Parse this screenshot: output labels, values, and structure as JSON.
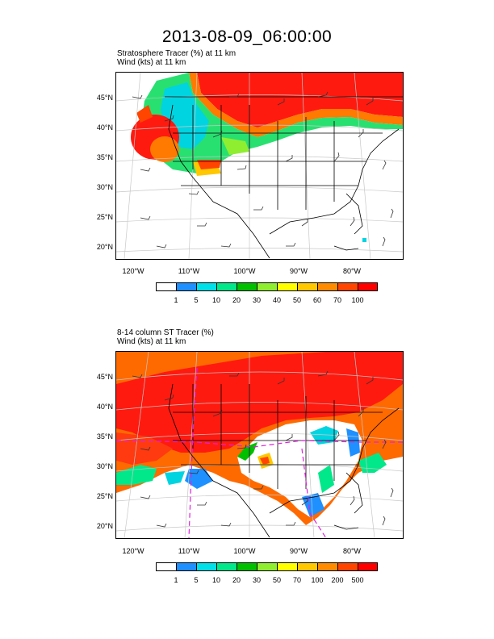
{
  "title": "2013-08-09_06:00:00",
  "panels": [
    {
      "label_line1": "Stratosphere Tracer   (%)    at   11 km",
      "label_line2": "Wind   (kts)     at   11 km",
      "lat_labels": [
        "45°N",
        "40°N",
        "35°N",
        "30°N",
        "25°N",
        "20°N"
      ],
      "lon_labels": [
        "120°W",
        "110°W",
        "100°W",
        "90°W",
        "80°W"
      ],
      "colorbar_labels": [
        "1",
        "5",
        "10",
        "20",
        "30",
        "40",
        "50",
        "60",
        "70",
        "100"
      ],
      "colorbar_colors": [
        "#ffffff",
        "#1e90ff",
        "#00e0e8",
        "#00e88a",
        "#00c000",
        "#90ee30",
        "#ffff00",
        "#ffc800",
        "#ff8c00",
        "#ff4500",
        "#ff0000"
      ]
    },
    {
      "label_line1": "8-14 column ST Tracer   (%)",
      "label_line2": "Wind   (kts)     at   11 km",
      "lat_labels": [
        "45°N",
        "40°N",
        "35°N",
        "30°N",
        "25°N",
        "20°N"
      ],
      "lon_labels": [
        "120°W",
        "110°W",
        "100°W",
        "90°W",
        "80°W"
      ],
      "colorbar_labels": [
        "1",
        "5",
        "10",
        "20",
        "30",
        "50",
        "70",
        "100",
        "200",
        "500"
      ],
      "colorbar_colors": [
        "#ffffff",
        "#1e90ff",
        "#00e0e8",
        "#00e88a",
        "#00c000",
        "#90ee30",
        "#ffff00",
        "#ffc800",
        "#ff8c00",
        "#ff4500",
        "#ff0000"
      ]
    }
  ]
}
